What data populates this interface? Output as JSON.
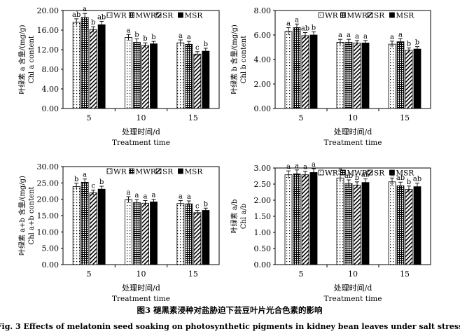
{
  "legend": [
    {
      "label": "WR",
      "pattern": "dots"
    },
    {
      "label": "MWR",
      "pattern": "grid"
    },
    {
      "label": "SR",
      "pattern": "diag"
    },
    {
      "label": "MSR",
      "pattern": "solid"
    }
  ],
  "x_title_cn": "处理时间/d",
  "x_title_en": "Treatment time",
  "caption_cn": "图3    褪黑素浸种对盐胁迫下芸豆叶片光合色素的影响",
  "caption_en": "Fig. 3    Effects of melatonin seed soaking on photosynthetic pigments in kidney bean leaves under salt stress",
  "chart_data": [
    {
      "type": "bar",
      "ylabel_cn": "叶绿素 a 含量/(mg/g)",
      "ylabel_en": "Chl a content",
      "ylim": [
        0,
        20
      ],
      "yticks": [
        "0.00",
        "4.00",
        "8.00",
        "12.00",
        "16.00",
        "20.00"
      ],
      "categories": [
        "5",
        "10",
        "15"
      ],
      "series": [
        {
          "name": "WR",
          "values": [
            17.6,
            14.5,
            13.4
          ],
          "errors": [
            0.7,
            0.6,
            0.6
          ],
          "letters": [
            "ab",
            "a",
            "a"
          ]
        },
        {
          "name": "MWR",
          "values": [
            18.6,
            13.5,
            13.1
          ],
          "errors": [
            0.8,
            0.7,
            0.6
          ],
          "letters": [
            "a",
            "b",
            "a"
          ]
        },
        {
          "name": "SR",
          "values": [
            16.1,
            12.9,
            11.1
          ],
          "errors": [
            0.6,
            0.5,
            0.5
          ],
          "letters": [
            "b",
            "b",
            "c"
          ]
        },
        {
          "name": "MSR",
          "values": [
            17.1,
            13.2,
            11.7
          ],
          "errors": [
            0.7,
            0.5,
            0.6
          ],
          "letters": [
            "ab",
            "b",
            "b"
          ]
        }
      ]
    },
    {
      "type": "bar",
      "ylabel_cn": "叶绿素 b 含量/(mg/g)",
      "ylabel_en": "Chl b content",
      "ylim": [
        0,
        8
      ],
      "yticks": [
        "0.00",
        "2.00",
        "4.00",
        "6.00",
        "8.00"
      ],
      "categories": [
        "5",
        "10",
        "15"
      ],
      "series": [
        {
          "name": "WR",
          "values": [
            6.3,
            5.4,
            5.25
          ],
          "errors": [
            0.3,
            0.25,
            0.25
          ],
          "letters": [
            "a",
            "a",
            "a"
          ]
        },
        {
          "name": "MWR",
          "values": [
            6.6,
            5.4,
            5.45
          ],
          "errors": [
            0.3,
            0.25,
            0.25
          ],
          "letters": [
            "a",
            "a",
            "a"
          ]
        },
        {
          "name": "SR",
          "values": [
            5.95,
            5.35,
            4.75
          ],
          "errors": [
            0.25,
            0.2,
            0.2
          ],
          "letters": [
            "ab",
            "a",
            "b"
          ]
        },
        {
          "name": "MSR",
          "values": [
            6.0,
            5.35,
            4.85
          ],
          "errors": [
            0.25,
            0.2,
            0.2
          ],
          "letters": [
            "b",
            "a",
            "b"
          ]
        }
      ]
    },
    {
      "type": "bar",
      "ylabel_cn": "叶绿素 a+b 含量/(mg/g)",
      "ylabel_en": "Chl a+b content",
      "ylim": [
        0,
        30
      ],
      "yticks": [
        "0.00",
        "5.00",
        "10.00",
        "15.00",
        "20.00",
        "25.00",
        "30.00"
      ],
      "categories": [
        "5",
        "10",
        "15"
      ],
      "series": [
        {
          "name": "WR",
          "values": [
            23.9,
            19.9,
            18.7
          ],
          "errors": [
            1.0,
            0.9,
            0.9
          ],
          "letters": [
            "b",
            "a",
            "a"
          ]
        },
        {
          "name": "MWR",
          "values": [
            25.2,
            19.0,
            18.6
          ],
          "errors": [
            1.0,
            0.9,
            0.9
          ],
          "letters": [
            "a",
            "a",
            "a"
          ]
        },
        {
          "name": "SR",
          "values": [
            22.0,
            18.8,
            15.9
          ],
          "errors": [
            0.8,
            0.8,
            0.7
          ],
          "letters": [
            "c",
            "a",
            "c"
          ]
        },
        {
          "name": "MSR",
          "values": [
            23.1,
            19.2,
            16.6
          ],
          "errors": [
            0.9,
            0.8,
            0.7
          ],
          "letters": [
            "b",
            "a",
            "b"
          ]
        }
      ]
    },
    {
      "type": "bar",
      "ylabel_cn": "叶绿素 a/b",
      "ylabel_en": "Chl a/b",
      "ylim": [
        0,
        3
      ],
      "yticks": [
        "0.00",
        "0.50",
        "1.00",
        "1.50",
        "2.00",
        "2.50",
        "3.00"
      ],
      "categories": [
        "5",
        "10",
        "15"
      ],
      "series": [
        {
          "name": "WR",
          "values": [
            2.79,
            2.69,
            2.57
          ],
          "errors": [
            0.12,
            0.12,
            0.12
          ],
          "letters": [
            "a",
            "a",
            "a"
          ]
        },
        {
          "name": "MWR",
          "values": [
            2.82,
            2.52,
            2.45
          ],
          "errors": [
            0.12,
            0.11,
            0.11
          ],
          "letters": [
            "a",
            "ab",
            "ab"
          ]
        },
        {
          "name": "SR",
          "values": [
            2.79,
            2.47,
            2.34
          ],
          "errors": [
            0.11,
            0.1,
            0.1
          ],
          "letters": [
            "a",
            "b",
            "b"
          ]
        },
        {
          "name": "MSR",
          "values": [
            2.86,
            2.55,
            2.42
          ],
          "errors": [
            0.12,
            0.11,
            0.11
          ],
          "letters": [
            "a",
            "ab",
            "ab"
          ]
        }
      ]
    }
  ]
}
